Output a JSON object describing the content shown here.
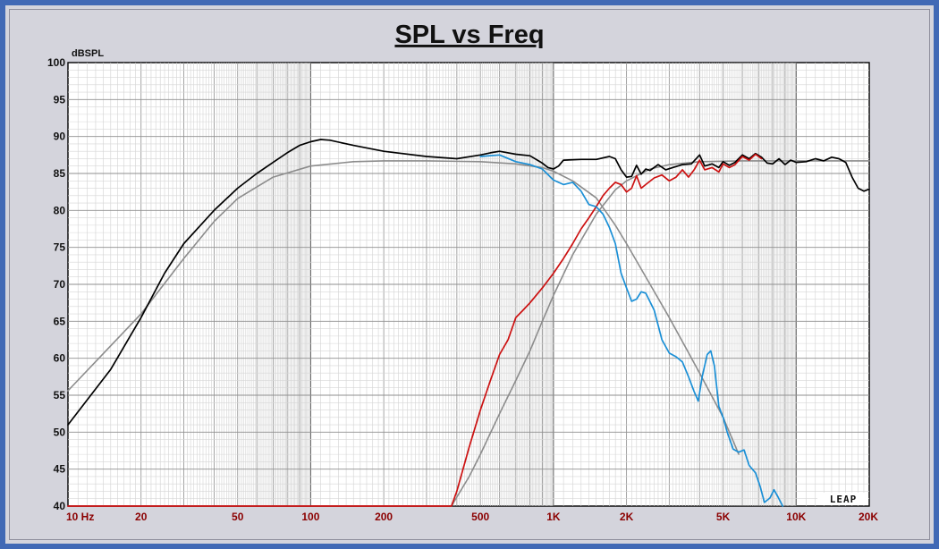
{
  "chart_data": {
    "type": "line",
    "title": "SPL vs Freq",
    "ylabel": "dBSPL",
    "xlabel": "",
    "x_scale": "log",
    "xlim": [
      10,
      20000
    ],
    "ylim": [
      40,
      100
    ],
    "grid": true,
    "x_ticks": [
      {
        "value": 10,
        "label": "10  Hz"
      },
      {
        "value": 20,
        "label": "20"
      },
      {
        "value": 50,
        "label": "50"
      },
      {
        "value": 100,
        "label": "100"
      },
      {
        "value": 200,
        "label": "200"
      },
      {
        "value": 500,
        "label": "500"
      },
      {
        "value": 1000,
        "label": "1K"
      },
      {
        "value": 2000,
        "label": "2K"
      },
      {
        "value": 5000,
        "label": "5K"
      },
      {
        "value": 10000,
        "label": "10K"
      },
      {
        "value": 20000,
        "label": "20K"
      }
    ],
    "y_ticks": [
      100,
      95,
      90,
      85,
      80,
      75,
      70,
      65,
      60,
      55,
      50,
      45,
      40
    ],
    "series": [
      {
        "color": "#8c8c8c",
        "role": "target-lowpass",
        "points": [
          [
            10,
            55.6
          ],
          [
            20,
            66
          ],
          [
            30,
            73.5
          ],
          [
            40,
            78.5
          ],
          [
            50,
            81.6
          ],
          [
            70,
            84.5
          ],
          [
            100,
            86
          ],
          [
            150,
            86.6
          ],
          [
            200,
            86.7
          ],
          [
            300,
            86.7
          ],
          [
            500,
            86.6
          ],
          [
            700,
            86.3
          ],
          [
            900,
            85.8
          ],
          [
            1000,
            85.3
          ],
          [
            1200,
            84
          ],
          [
            1500,
            81.7
          ],
          [
            1800,
            78
          ],
          [
            2000,
            75.5
          ],
          [
            2500,
            70
          ],
          [
            3000,
            65.5
          ],
          [
            3500,
            61.5
          ],
          [
            4000,
            58
          ],
          [
            5000,
            52
          ],
          [
            5800,
            47
          ]
        ]
      },
      {
        "color": "#8c8c8c",
        "role": "target-highpass",
        "points": [
          [
            380,
            40
          ],
          [
            450,
            44
          ],
          [
            500,
            47
          ],
          [
            600,
            52.5
          ],
          [
            700,
            57
          ],
          [
            800,
            61
          ],
          [
            900,
            65
          ],
          [
            1000,
            68.5
          ],
          [
            1200,
            74
          ],
          [
            1500,
            79.5
          ],
          [
            1800,
            82.8
          ],
          [
            2000,
            84
          ],
          [
            2500,
            85.6
          ],
          [
            3000,
            86.2
          ],
          [
            4000,
            86.6
          ],
          [
            6000,
            86.7
          ],
          [
            10000,
            86.7
          ],
          [
            20000,
            86.7
          ]
        ]
      },
      {
        "color": "#000000",
        "role": "system-sum",
        "points": [
          [
            10,
            51
          ],
          [
            15,
            58.5
          ],
          [
            20,
            65.5
          ],
          [
            25,
            71.5
          ],
          [
            30,
            75.5
          ],
          [
            40,
            80
          ],
          [
            50,
            83
          ],
          [
            60,
            85
          ],
          [
            70,
            86.5
          ],
          [
            80,
            87.8
          ],
          [
            90,
            88.8
          ],
          [
            100,
            89.3
          ],
          [
            110,
            89.6
          ],
          [
            120,
            89.5
          ],
          [
            150,
            88.8
          ],
          [
            200,
            88
          ],
          [
            300,
            87.3
          ],
          [
            400,
            87
          ],
          [
            500,
            87.5
          ],
          [
            550,
            87.8
          ],
          [
            600,
            88
          ],
          [
            700,
            87.6
          ],
          [
            800,
            87.4
          ],
          [
            900,
            86.4
          ],
          [
            950,
            85.8
          ],
          [
            1000,
            85.6
          ],
          [
            1050,
            86
          ],
          [
            1100,
            86.8
          ],
          [
            1300,
            86.9
          ],
          [
            1500,
            86.9
          ],
          [
            1700,
            87.3
          ],
          [
            1800,
            87
          ],
          [
            1900,
            85.5
          ],
          [
            2000,
            84.5
          ],
          [
            2100,
            84.6
          ],
          [
            2200,
            86.1
          ],
          [
            2300,
            84.9
          ],
          [
            2400,
            85.6
          ],
          [
            2500,
            85.4
          ],
          [
            2700,
            86.2
          ],
          [
            2900,
            85.5
          ],
          [
            3100,
            85.8
          ],
          [
            3400,
            86.2
          ],
          [
            3700,
            86.3
          ],
          [
            4000,
            87.5
          ],
          [
            4200,
            86
          ],
          [
            4500,
            86.3
          ],
          [
            4800,
            85.8
          ],
          [
            5000,
            86.6
          ],
          [
            5300,
            86.1
          ],
          [
            5600,
            86.5
          ],
          [
            6000,
            87.5
          ],
          [
            6400,
            87
          ],
          [
            6800,
            87.7
          ],
          [
            7200,
            87.2
          ],
          [
            7600,
            86.4
          ],
          [
            8000,
            86.3
          ],
          [
            8500,
            87
          ],
          [
            9000,
            86.2
          ],
          [
            9500,
            86.8
          ],
          [
            10000,
            86.5
          ],
          [
            11000,
            86.6
          ],
          [
            12000,
            87
          ],
          [
            13000,
            86.7
          ],
          [
            14000,
            87.2
          ],
          [
            15000,
            87
          ],
          [
            16000,
            86.5
          ],
          [
            17000,
            84.5
          ],
          [
            18000,
            83
          ],
          [
            19000,
            82.6
          ],
          [
            20000,
            82.9
          ]
        ]
      },
      {
        "color": "#cc1010",
        "role": "tweeter",
        "points": [
          [
            10,
            40
          ],
          [
            380,
            40
          ],
          [
            400,
            42
          ],
          [
            450,
            48
          ],
          [
            500,
            53
          ],
          [
            550,
            57
          ],
          [
            600,
            60.5
          ],
          [
            650,
            62.5
          ],
          [
            700,
            65.5
          ],
          [
            750,
            66.5
          ],
          [
            800,
            67.5
          ],
          [
            900,
            69.5
          ],
          [
            1000,
            71.5
          ],
          [
            1100,
            73.5
          ],
          [
            1200,
            75.5
          ],
          [
            1300,
            77.5
          ],
          [
            1400,
            79
          ],
          [
            1500,
            80.5
          ],
          [
            1600,
            82
          ],
          [
            1700,
            83
          ],
          [
            1800,
            83.8
          ],
          [
            1900,
            83.5
          ],
          [
            2000,
            82.5
          ],
          [
            2100,
            83
          ],
          [
            2200,
            84.7
          ],
          [
            2300,
            83
          ],
          [
            2400,
            83.5
          ],
          [
            2600,
            84.4
          ],
          [
            2800,
            84.8
          ],
          [
            3000,
            84
          ],
          [
            3200,
            84.5
          ],
          [
            3400,
            85.5
          ],
          [
            3600,
            84.5
          ],
          [
            3800,
            85.5
          ],
          [
            4000,
            86.8
          ],
          [
            4200,
            85.5
          ],
          [
            4500,
            85.8
          ],
          [
            4800,
            85.2
          ],
          [
            5000,
            86.3
          ],
          [
            5300,
            85.8
          ],
          [
            5600,
            86.2
          ],
          [
            6000,
            87.3
          ],
          [
            6400,
            86.8
          ],
          [
            6800,
            87.6
          ],
          [
            7200,
            87
          ]
        ]
      },
      {
        "color": "#1a8fd6",
        "role": "woofer",
        "points": [
          [
            500,
            87.3
          ],
          [
            600,
            87.5
          ],
          [
            700,
            86.6
          ],
          [
            800,
            86.2
          ],
          [
            900,
            85.6
          ],
          [
            1000,
            84.1
          ],
          [
            1100,
            83.5
          ],
          [
            1200,
            83.8
          ],
          [
            1300,
            82.6
          ],
          [
            1400,
            80.8
          ],
          [
            1500,
            80.5
          ],
          [
            1600,
            79.5
          ],
          [
            1700,
            77.7
          ],
          [
            1800,
            75.5
          ],
          [
            1900,
            71.5
          ],
          [
            2000,
            69.5
          ],
          [
            2100,
            67.7
          ],
          [
            2200,
            68
          ],
          [
            2300,
            69
          ],
          [
            2400,
            68.8
          ],
          [
            2600,
            66.5
          ],
          [
            2800,
            62.5
          ],
          [
            3000,
            60.7
          ],
          [
            3200,
            60.2
          ],
          [
            3400,
            59.5
          ],
          [
            3600,
            57.5
          ],
          [
            3800,
            55.5
          ],
          [
            3950,
            54.2
          ],
          [
            4100,
            57.5
          ],
          [
            4300,
            60.5
          ],
          [
            4450,
            61
          ],
          [
            4600,
            59
          ],
          [
            4800,
            53.5
          ],
          [
            5000,
            52
          ],
          [
            5200,
            50
          ],
          [
            5500,
            47.7
          ],
          [
            5800,
            47.3
          ],
          [
            6100,
            47.6
          ],
          [
            6400,
            45.5
          ],
          [
            6800,
            44.5
          ],
          [
            7100,
            42.7
          ],
          [
            7400,
            40.5
          ],
          [
            7800,
            41.1
          ],
          [
            8100,
            42.2
          ],
          [
            8400,
            41.3
          ],
          [
            8800,
            40
          ]
        ]
      }
    ]
  },
  "watermark": "LEAP"
}
